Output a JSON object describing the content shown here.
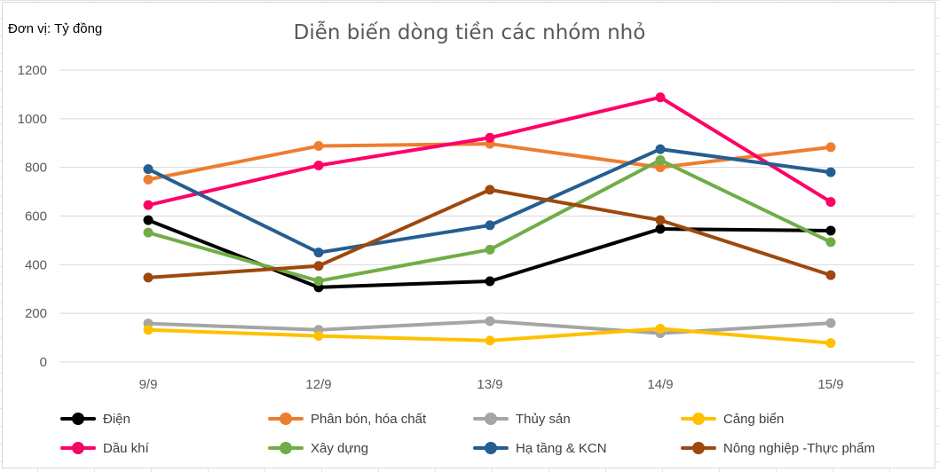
{
  "unit_label": "Đơn vị: Tỷ đồng",
  "chart_data": {
    "type": "line",
    "title": "Diễn biến dòng tiền các nhóm nhỏ",
    "xlabel": "",
    "ylabel": "",
    "categories": [
      "9/9",
      "12/9",
      "13/9",
      "14/9",
      "15/9"
    ],
    "ylim": [
      0,
      1200
    ],
    "yticks": [
      0,
      200,
      400,
      600,
      800,
      1000,
      1200
    ],
    "grid": true,
    "legend_position": "bottom",
    "series": [
      {
        "name": "Điện",
        "color": "#000000",
        "values": [
          583,
          307,
          332,
          547,
          540
        ]
      },
      {
        "name": "Phân bón, hóa chất",
        "color": "#ED7D31",
        "values": [
          750,
          888,
          897,
          800,
          883
        ]
      },
      {
        "name": "Thủy sản",
        "color": "#A5A5A5",
        "values": [
          158,
          132,
          168,
          118,
          160
        ]
      },
      {
        "name": "Cảng biển",
        "color": "#FFC000",
        "values": [
          132,
          107,
          88,
          137,
          78
        ]
      },
      {
        "name": "Dầu khí",
        "color": "#FF0066",
        "values": [
          645,
          808,
          922,
          1088,
          658
        ]
      },
      {
        "name": "Xây dựng",
        "color": "#70AD47",
        "values": [
          532,
          333,
          462,
          830,
          493
        ]
      },
      {
        "name": "Hạ tầng & KCN",
        "color": "#255E91",
        "values": [
          793,
          450,
          562,
          875,
          780
        ]
      },
      {
        "name": "Nông nghiệp -Thực phẩm",
        "color": "#9E480E",
        "values": [
          347,
          395,
          708,
          583,
          357
        ]
      }
    ]
  }
}
